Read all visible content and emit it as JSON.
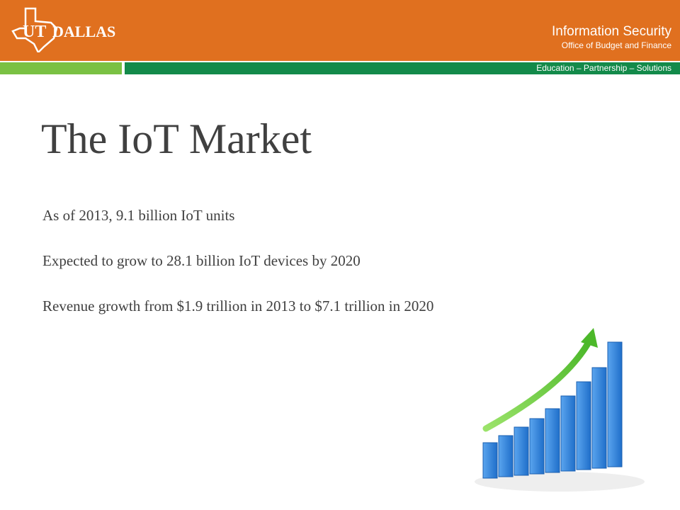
{
  "header": {
    "logo_text_ut": "UT",
    "logo_text_dallas": "DALLAS",
    "department": "Information Security",
    "office": "Office of Budget and Finance",
    "tagline": "Education – Partnership – Solutions"
  },
  "slide": {
    "title": "The IoT Market",
    "bullets": [
      "As of 2013, 9.1 billion IoT units",
      "Expected to grow to 28.1 billion IoT devices by 2020",
      "Revenue growth from $1.9 trillion in 2013 to $7.1 trillion in 2020"
    ]
  },
  "colors": {
    "header_orange": "#e0701f",
    "bar_light_green": "#7ac143",
    "bar_dark_green": "#138a4a",
    "text": "#404040",
    "chart_blue": "#2f7fd6",
    "arrow_green": "#6cc43a"
  },
  "illustration": {
    "icon": "growth-bar-chart-with-arrow-icon"
  }
}
